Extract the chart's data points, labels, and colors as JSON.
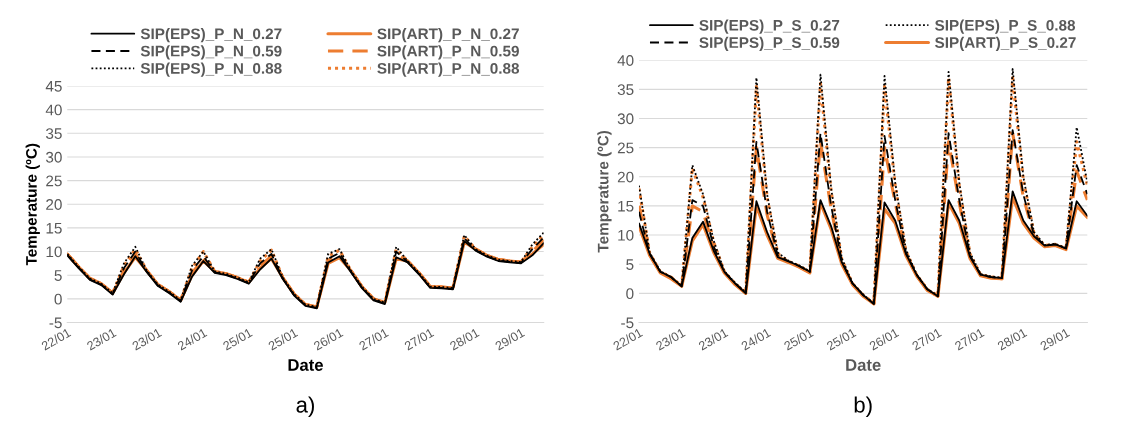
{
  "chart_data": [
    {
      "type": "line",
      "xlabel": "Date",
      "ylabel": "Temperature (ºC)",
      "annotations": [
        "a)"
      ],
      "categories": [
        "22/01",
        null,
        null,
        null,
        "23/01",
        null,
        null,
        null,
        "23/01",
        null,
        null,
        null,
        "24/01",
        null,
        null,
        null,
        "25/01",
        null,
        null,
        null,
        "25/01",
        null,
        null,
        null,
        "26/01",
        null,
        null,
        null,
        "27/01",
        null,
        null,
        null,
        "27/01",
        null,
        null,
        null,
        "28/01",
        null,
        null,
        null,
        "29/01",
        null,
        null
      ],
      "ylim": [
        -5,
        45
      ],
      "yticks": [
        -5,
        0,
        5,
        10,
        15,
        20,
        25,
        30,
        35,
        40,
        45
      ],
      "grid": "y",
      "legend": "top",
      "series": [
        {
          "name": "SIP(EPS)_P_N_0.27",
          "color": "#000000",
          "line_style": "solid",
          "values": [
            9.2,
            6.5,
            4,
            2.9,
            0.9,
            5.2,
            9,
            5.7,
            2.7,
            1.2,
            -0.6,
            4.7,
            8,
            5.5,
            5,
            4.2,
            3.2,
            6.2,
            8.5,
            4.2,
            0.7,
            -1.5,
            -2,
            7.7,
            9,
            5.7,
            2.2,
            -0.3,
            -1.1,
            8.8,
            7.7,
            5.2,
            2.3,
            2.2,
            2,
            12.2,
            10.2,
            8.9,
            8,
            7.7,
            7.5,
            9.2,
            11.8
          ]
        },
        {
          "name": "SIP(EPS)_P_N_0.59",
          "color": "#000000",
          "line_style": "dashed",
          "values": [
            9.3,
            6.6,
            4.1,
            3,
            1,
            6.5,
            10,
            5.8,
            2.8,
            1.3,
            -0.5,
            6,
            9,
            5.6,
            5.1,
            4.3,
            3.3,
            7.5,
            9.5,
            4.3,
            0.8,
            -1.4,
            -1.9,
            8.5,
            9.7,
            5.8,
            2.3,
            -0.2,
            -1,
            10,
            7.8,
            5.3,
            2.4,
            2.3,
            2.1,
            12.8,
            10.3,
            9,
            8.1,
            7.8,
            7.6,
            10.5,
            13
          ]
        },
        {
          "name": "SIP(EPS)_P_N_0.88",
          "color": "#000000",
          "line_style": "dotted",
          "values": [
            9.5,
            6.8,
            4.3,
            3.2,
            1.2,
            7.5,
            11,
            6,
            3,
            1.5,
            -0.3,
            7,
            10,
            5.8,
            5.3,
            4.5,
            3.5,
            8.5,
            10.5,
            4.5,
            1,
            -1.2,
            -1.7,
            9.5,
            10.5,
            6,
            2.5,
            0,
            -0.8,
            11,
            8,
            5.5,
            2.6,
            2.5,
            2.3,
            13.5,
            10.5,
            9.2,
            8.3,
            8,
            7.8,
            11.5,
            14
          ]
        },
        {
          "name": "SIP(ART)_P_N_0.27",
          "color": "#ed7d31",
          "line_style": "solid",
          "values": [
            9.5,
            6.8,
            4.3,
            3.2,
            1.2,
            5.5,
            8.8,
            6,
            3,
            1.5,
            -0.3,
            5,
            8,
            5.8,
            5.3,
            4.5,
            3.5,
            6.5,
            8.5,
            4.5,
            1,
            -1.2,
            -1.7,
            7.5,
            8.7,
            6,
            2.5,
            0,
            -0.8,
            8.5,
            8,
            5.5,
            2.6,
            2.5,
            2.3,
            12,
            10.5,
            9.2,
            8.3,
            8,
            7.8,
            9.5,
            11.5
          ]
        },
        {
          "name": "SIP(ART)_P_N_0.59",
          "color": "#ed7d31",
          "line_style": "dashed",
          "values": [
            9.5,
            6.8,
            4.3,
            3.2,
            1.2,
            6,
            9.5,
            6,
            3,
            1.5,
            -0.3,
            5.5,
            8.5,
            5.8,
            5.3,
            4.5,
            3.5,
            7,
            9,
            4.5,
            1,
            -1.2,
            -1.7,
            8,
            9.3,
            6,
            2.5,
            0,
            -0.8,
            9.5,
            8,
            5.5,
            2.6,
            2.5,
            2.3,
            12.5,
            10.5,
            9.2,
            8.3,
            8,
            7.8,
            10,
            12.5
          ]
        },
        {
          "name": "SIP(ART)_P_N_0.88",
          "color": "#ed7d31",
          "line_style": "dotted",
          "values": [
            9.5,
            6.8,
            4.3,
            3.2,
            1.2,
            7,
            10.5,
            6,
            3,
            1.5,
            -0.3,
            6.5,
            10,
            5.8,
            5.3,
            4.5,
            3.5,
            8,
            10.3,
            4.5,
            1,
            -1.2,
            -1.7,
            9,
            10.3,
            6,
            2.5,
            0,
            -0.8,
            10.5,
            8,
            5.5,
            2.6,
            2.5,
            2.3,
            13.3,
            10.5,
            9.2,
            8.3,
            8,
            7.8,
            11,
            13.5
          ]
        }
      ]
    },
    {
      "type": "line",
      "xlabel": "Date",
      "ylabel": "Temperature (ºC)",
      "annotations": [
        "b)"
      ],
      "categories": [
        "22/01",
        null,
        null,
        null,
        "23/01",
        null,
        null,
        null,
        "23/01",
        null,
        null,
        null,
        "24/01",
        null,
        null,
        null,
        "25/01",
        null,
        null,
        null,
        "25/01",
        null,
        null,
        null,
        "26/01",
        null,
        null,
        null,
        "27/01",
        null,
        null,
        null,
        "27/01",
        null,
        null,
        null,
        "28/01",
        null,
        null,
        null,
        "29/01",
        null,
        null
      ],
      "ylim": [
        -5,
        40
      ],
      "yticks": [
        -5,
        0,
        5,
        10,
        15,
        20,
        25,
        30,
        35,
        40
      ],
      "grid": "y",
      "legend": "top",
      "series": [
        {
          "name": "SIP(EPS)_P_S_0.27",
          "color": "#000000",
          "line_style": "solid",
          "values": [
            12,
            6.8,
            3.7,
            2.8,
            1.2,
            9.5,
            12.3,
            7.3,
            3.7,
            1.7,
            0,
            15.8,
            10.5,
            6.2,
            5.5,
            4.7,
            3.7,
            16,
            11.5,
            5.3,
            1.7,
            -0.3,
            -1.8,
            15.6,
            12.5,
            6.8,
            3.2,
            0.7,
            -0.5,
            16,
            12.5,
            6.3,
            3.2,
            2.8,
            2.6,
            17.5,
            12.5,
            9.8,
            8.2,
            8.4,
            7.7,
            15.8,
            13.3
          ]
        },
        {
          "name": "SIP(EPS)_P_S_0.59",
          "color": "#000000",
          "line_style": "dashed",
          "values": [
            14,
            6.8,
            3.7,
            2.8,
            1.2,
            16,
            15,
            8,
            3.7,
            1.7,
            0,
            26,
            14,
            6.5,
            5.5,
            4.7,
            3.7,
            27.5,
            15,
            5.5,
            1.7,
            -0.3,
            -1.8,
            27,
            16,
            7,
            3.2,
            0.7,
            -0.5,
            27.5,
            16,
            6.5,
            3.2,
            2.8,
            2.6,
            28,
            17,
            10,
            8.2,
            8.4,
            7.7,
            22,
            17
          ]
        },
        {
          "name": "SIP(EPS)_P_S_0.88",
          "color": "#000000",
          "line_style": "dotted",
          "values": [
            18.5,
            7,
            3.8,
            2.8,
            1.3,
            22,
            17,
            9,
            3.8,
            1.8,
            0.2,
            37,
            17,
            7,
            5.6,
            4.8,
            3.8,
            37.5,
            18,
            6,
            1.8,
            -0.2,
            -1.7,
            37.3,
            19,
            7.5,
            3.3,
            0.8,
            -0.4,
            38,
            19,
            7,
            3.3,
            2.9,
            2.7,
            38.5,
            20,
            10.5,
            8.3,
            8.5,
            7.8,
            28.5,
            19
          ]
        },
        {
          "name": "SIP(ART)_P_S_0.27",
          "color": "#ed7d31",
          "line_style": "solid",
          "values": [
            11.5,
            6.5,
            3.5,
            2.5,
            1.2,
            9,
            11.8,
            7,
            3.5,
            1.5,
            0,
            15,
            10,
            6,
            5.3,
            4.5,
            3.5,
            15.5,
            11,
            5,
            1.5,
            -0.5,
            -1.8,
            14.5,
            12,
            6.5,
            3,
            0.5,
            -0.5,
            15.5,
            12,
            6,
            3,
            2.6,
            2.5,
            16.5,
            12,
            9.5,
            8,
            8.2,
            7.5,
            15,
            13
          ]
        },
        {
          "color": "#ed7d31",
          "line_style": "dashed",
          "values": [
            15,
            6.7,
            3.6,
            2.7,
            1.2,
            15,
            14,
            7.8,
            3.6,
            1.6,
            0,
            25,
            13.5,
            6.3,
            5.4,
            4.6,
            3.6,
            26,
            14.5,
            5.3,
            1.6,
            -0.4,
            -1.8,
            25,
            15.5,
            6.8,
            3.1,
            0.6,
            -0.5,
            26,
            15.5,
            6.3,
            3.1,
            2.7,
            2.5,
            27.5,
            16.5,
            9.8,
            8.1,
            8.3,
            7.6,
            21,
            16
          ]
        },
        {
          "color": "#ed7d31",
          "line_style": "dotted",
          "values": [
            18,
            6.9,
            3.7,
            2.8,
            1.3,
            21.5,
            16.5,
            8.8,
            3.7,
            1.7,
            0.1,
            35.5,
            16.5,
            6.8,
            5.5,
            4.7,
            3.7,
            36,
            17.5,
            5.8,
            1.7,
            -0.3,
            -1.7,
            35.5,
            18.5,
            7.3,
            3.2,
            0.7,
            -0.4,
            37,
            18.5,
            6.8,
            3.2,
            2.8,
            2.6,
            37,
            19.5,
            10.3,
            8.2,
            8.4,
            7.7,
            26,
            18.5
          ]
        }
      ]
    }
  ]
}
